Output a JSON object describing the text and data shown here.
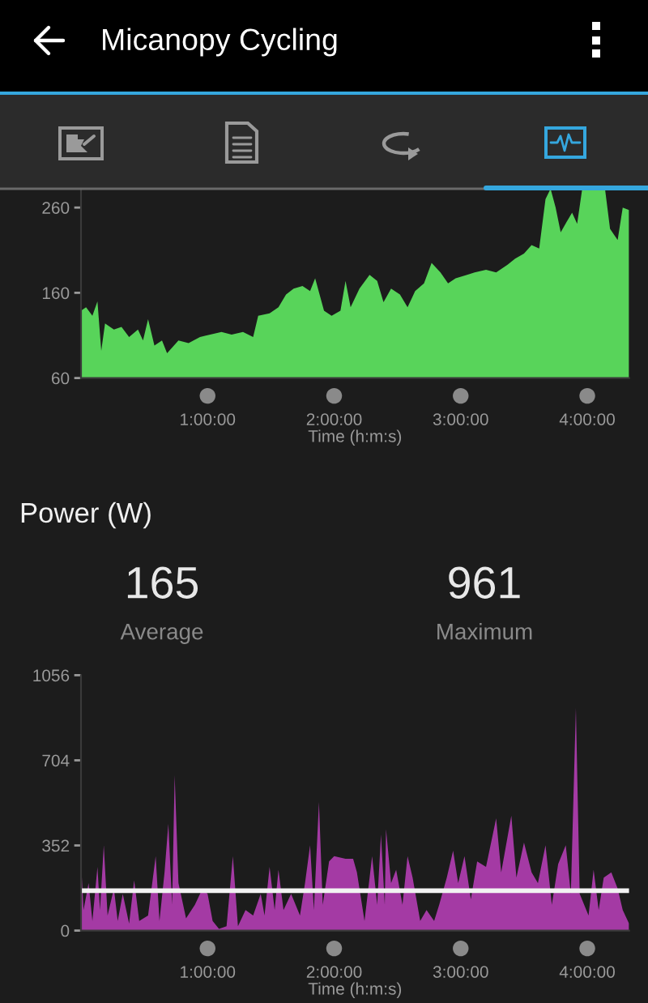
{
  "chart_data": [
    {
      "type": "area",
      "title": "Micanopy Cycling",
      "xlabel": "Time (h:m:s)",
      "x": [
        0,
        0.04,
        0.09,
        0.13,
        0.16,
        0.19,
        0.26,
        0.32,
        0.38,
        0.45,
        0.49,
        0.53,
        0.58,
        0.64,
        0.68,
        0.77,
        0.85,
        0.94,
        1.02,
        1.11,
        1.19,
        1.28,
        1.36,
        1.4,
        1.49,
        1.56,
        1.62,
        1.68,
        1.75,
        1.81,
        1.85,
        1.92,
        1.98,
        2.05,
        2.09,
        2.13,
        2.2,
        2.28,
        2.34,
        2.39,
        2.45,
        2.52,
        2.58,
        2.64,
        2.71,
        2.77,
        2.84,
        2.9,
        2.96,
        3.05,
        3.11,
        3.2,
        3.28,
        3.37,
        3.43,
        3.5,
        3.56,
        3.62,
        3.67,
        3.71,
        3.75,
        3.79,
        3.84,
        3.88,
        3.92,
        3.96,
        4.05,
        4.14,
        4.18,
        4.24,
        4.28,
        4.33
      ],
      "values": [
        139,
        143,
        133,
        150,
        92,
        124,
        117,
        120,
        108,
        117,
        104,
        129,
        98,
        104,
        89,
        104,
        101,
        108,
        111,
        114,
        111,
        114,
        108,
        133,
        136,
        143,
        158,
        165,
        168,
        162,
        177,
        139,
        133,
        139,
        174,
        143,
        165,
        181,
        174,
        149,
        165,
        158,
        143,
        162,
        171,
        195,
        184,
        171,
        177,
        181,
        184,
        187,
        184,
        193,
        200,
        206,
        216,
        212,
        270,
        282,
        260,
        231,
        244,
        254,
        241,
        282,
        283,
        282,
        235,
        222,
        260,
        257
      ],
      "color": "#58d45a",
      "xlim": [
        0,
        4.33
      ],
      "xticks": [
        {
          "value": 1,
          "label": "1:00:00"
        },
        {
          "value": 2,
          "label": "2:00:00"
        },
        {
          "value": 3,
          "label": "3:00:00"
        },
        {
          "value": 4,
          "label": "4:00:00"
        }
      ],
      "ylim": [
        60,
        283
      ],
      "yticks": [
        60,
        160,
        260
      ]
    },
    {
      "type": "area",
      "title": "Power (W)",
      "xlabel": "Time (h:m:s)",
      "x": [
        0,
        0.02,
        0.06,
        0.09,
        0.13,
        0.15,
        0.18,
        0.21,
        0.26,
        0.29,
        0.33,
        0.38,
        0.42,
        0.46,
        0.53,
        0.59,
        0.62,
        0.66,
        0.69,
        0.72,
        0.74,
        0.77,
        0.83,
        0.9,
        0.96,
        1.0,
        1.04,
        1.09,
        1.15,
        1.2,
        1.24,
        1.3,
        1.36,
        1.42,
        1.45,
        1.49,
        1.53,
        1.56,
        1.6,
        1.66,
        1.73,
        1.77,
        1.81,
        1.84,
        1.88,
        1.91,
        1.96,
        2.0,
        2.09,
        2.15,
        2.18,
        2.24,
        2.3,
        2.34,
        2.37,
        2.4,
        2.41,
        2.45,
        2.49,
        2.54,
        2.58,
        2.62,
        2.68,
        2.73,
        2.79,
        2.83,
        2.89,
        2.94,
        2.98,
        3.03,
        3.08,
        3.13,
        3.2,
        3.28,
        3.32,
        3.4,
        3.44,
        3.5,
        3.56,
        3.61,
        3.67,
        3.72,
        3.77,
        3.83,
        3.87,
        3.91,
        3.94,
        4.01,
        4.05,
        4.09,
        4.13,
        4.19,
        4.24,
        4.28,
        4.33
      ],
      "values": [
        286,
        85,
        196,
        40,
        263,
        85,
        353,
        62,
        174,
        40,
        152,
        29,
        208,
        40,
        62,
        308,
        40,
        241,
        442,
        107,
        643,
        196,
        51,
        107,
        174,
        152,
        40,
        7,
        18,
        308,
        18,
        85,
        62,
        152,
        62,
        263,
        85,
        252,
        85,
        152,
        62,
        196,
        353,
        85,
        531,
        107,
        286,
        308,
        297,
        297,
        241,
        40,
        308,
        107,
        397,
        107,
        420,
        196,
        252,
        107,
        308,
        219,
        40,
        85,
        40,
        107,
        219,
        330,
        196,
        308,
        129,
        286,
        263,
        464,
        241,
        475,
        219,
        364,
        241,
        196,
        353,
        107,
        275,
        353,
        152,
        922,
        152,
        62,
        252,
        85,
        219,
        241,
        174,
        85,
        29
      ],
      "color": "#a43aa4",
      "xlim": [
        0,
        4.33
      ],
      "xticks": [
        {
          "value": 1,
          "label": "1:00:00"
        },
        {
          "value": 2,
          "label": "2:00:00"
        },
        {
          "value": 3,
          "label": "3:00:00"
        },
        {
          "value": 4,
          "label": "4:00:00"
        }
      ],
      "ylim": [
        0,
        1056
      ],
      "yticks": [
        0,
        352,
        704,
        1056
      ],
      "ref_lines": [
        {
          "axis": "y",
          "value": 165,
          "color": "#f2f2f2"
        }
      ],
      "annotations": [
        "165",
        "Average",
        "961",
        "Maximum"
      ]
    }
  ]
}
